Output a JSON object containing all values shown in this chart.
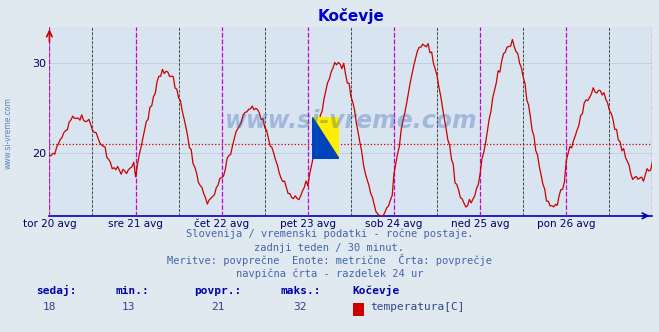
{
  "title": "Kočevje",
  "title_color": "#0000cc",
  "bg_color": "#e0e8f0",
  "plot_bg_color": "#d8e4f0",
  "grid_color": "#b8c8d8",
  "line_color": "#cc0000",
  "avg_line_color": "#cc0000",
  "avg_value": 21,
  "ymin": 13,
  "ymax": 34,
  "yticks": [
    20,
    30
  ],
  "xlabel_color": "#000066",
  "xtick_labels": [
    "tor 20 avg",
    "sre 21 avg",
    "čet 22 avg",
    "pet 23 avg",
    "sob 24 avg",
    "ned 25 avg",
    "pon 26 avg"
  ],
  "x_day_positions": [
    0,
    48,
    96,
    144,
    192,
    240,
    288
  ],
  "total_points": 337,
  "vline_magenta_positions": [
    0,
    48,
    96,
    144,
    192,
    240,
    288,
    336
  ],
  "vline_black_positions": [
    24,
    72,
    120,
    168,
    216,
    264,
    312
  ],
  "footer_line1": "Slovenija / vremenski podatki - ročne postaje.",
  "footer_line2": "zadnji teden / 30 minut.",
  "footer_line3": "Meritve: povprečne  Enote: metrične  Črta: povprečje",
  "footer_line4": "navpična črta - razdelek 24 ur",
  "footer_color": "#4466aa",
  "stats_label_color": "#0000aa",
  "stats_value_color": "#334488",
  "legend_color_box": "#cc0000",
  "legend_label": "temperatura[C]",
  "legend_location": "Kočevje",
  "watermark_text": "www.si-vreme.com",
  "watermark_color": "#2255aa",
  "left_label": "www.si-vreme.com",
  "left_label_color": "#2255aa"
}
